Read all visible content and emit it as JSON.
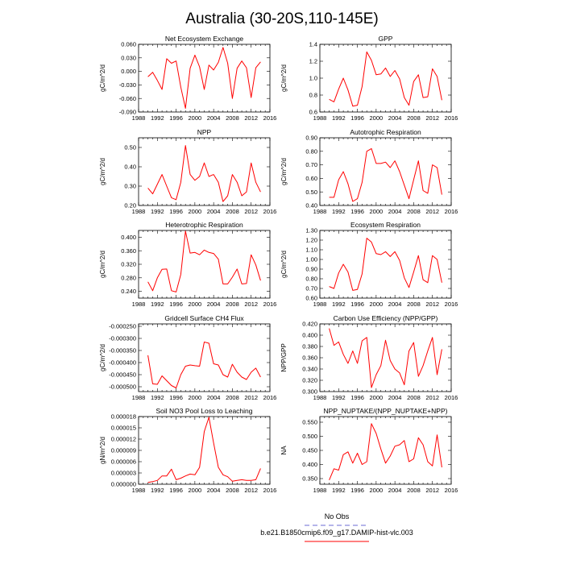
{
  "main_title": "Australia (30-20S,110-145E)",
  "legend": {
    "entries": [
      {
        "label": "No Obs",
        "color": "#6b6bd6",
        "dashed": true
      },
      {
        "label": "b.e21.B1850cmip6.f09_g17.DAMIP-hist-vlc.003",
        "color": "#ff0000",
        "dashed": false
      }
    ]
  },
  "chart_data": [
    {
      "type": "line",
      "title": "Net Ecosystem Exchange",
      "ylabel": "gC/m^2/d",
      "xlim": [
        1988,
        2016
      ],
      "xticks": [
        "1988",
        "1992",
        "1996",
        "2000",
        "2004",
        "2008",
        "2012",
        "2016"
      ],
      "ylim": [
        -0.09,
        0.06
      ],
      "yticks": [
        "-0.090",
        "-0.060",
        "-0.030",
        "0.000",
        "0.030",
        "0.060"
      ],
      "series": [
        {
          "color": "#ff0000",
          "x": [
            1990,
            1991,
            1992,
            1993,
            1994,
            1995,
            1996,
            1997,
            1998,
            1999,
            2000,
            2001,
            2002,
            2003,
            2004,
            2005,
            2006,
            2007,
            2008,
            2009,
            2010,
            2011,
            2012,
            2013,
            2014
          ],
          "y": [
            -0.012,
            -0.002,
            -0.02,
            -0.04,
            0.028,
            0.018,
            0.023,
            -0.035,
            -0.082,
            0.007,
            0.036,
            0.01,
            -0.04,
            0.014,
            0.003,
            0.02,
            0.053,
            0.018,
            -0.06,
            0.007,
            0.023,
            0.008,
            -0.058,
            0.008,
            0.021
          ]
        }
      ]
    },
    {
      "type": "line",
      "title": "GPP",
      "ylabel": "gC/m^2/d",
      "xlim": [
        1988,
        2016
      ],
      "xticks": [
        "1988",
        "1992",
        "1996",
        "2000",
        "2004",
        "2008",
        "2012",
        "2016"
      ],
      "ylim": [
        0.6,
        1.4
      ],
      "yticks": [
        "0.6",
        "0.8",
        "1.0",
        "1.2",
        "1.4"
      ],
      "series": [
        {
          "color": "#ff0000",
          "x": [
            1990,
            1991,
            1992,
            1993,
            1994,
            1995,
            1996,
            1997,
            1998,
            1999,
            2000,
            2001,
            2002,
            2003,
            2004,
            2005,
            2006,
            2007,
            2008,
            2009,
            2010,
            2011,
            2012,
            2013,
            2014
          ],
          "y": [
            0.75,
            0.72,
            0.87,
            1.0,
            0.86,
            0.67,
            0.68,
            0.9,
            1.31,
            1.21,
            1.04,
            1.05,
            1.12,
            1.02,
            1.09,
            0.99,
            0.77,
            0.68,
            0.96,
            1.04,
            0.77,
            0.78,
            1.11,
            1.02,
            0.74
          ]
        }
      ]
    },
    {
      "type": "line",
      "title": "NPP",
      "ylabel": "gC/m^2/d",
      "xlim": [
        1988,
        2016
      ],
      "xticks": [
        "1988",
        "1992",
        "1996",
        "2000",
        "2004",
        "2008",
        "2012",
        "2016"
      ],
      "ylim": [
        0.2,
        0.55
      ],
      "yticks": [
        "0.20",
        "0.30",
        "0.40",
        "0.50"
      ],
      "series": [
        {
          "color": "#ff0000",
          "x": [
            1990,
            1991,
            1992,
            1993,
            1994,
            1995,
            1996,
            1997,
            1998,
            1999,
            2000,
            2001,
            2002,
            2003,
            2004,
            2005,
            2006,
            2007,
            2008,
            2009,
            2010,
            2011,
            2012,
            2013,
            2014
          ],
          "y": [
            0.29,
            0.26,
            0.31,
            0.36,
            0.3,
            0.24,
            0.23,
            0.32,
            0.51,
            0.36,
            0.33,
            0.35,
            0.42,
            0.35,
            0.36,
            0.32,
            0.22,
            0.25,
            0.36,
            0.32,
            0.25,
            0.27,
            0.42,
            0.32,
            0.27
          ]
        }
      ]
    },
    {
      "type": "line",
      "title": "Autotrophic Respiration",
      "ylabel": "gC/m^2/d",
      "xlim": [
        1988,
        2016
      ],
      "xticks": [
        "1988",
        "1992",
        "1996",
        "2000",
        "2004",
        "2008",
        "2012",
        "2016"
      ],
      "ylim": [
        0.4,
        0.9
      ],
      "yticks": [
        "0.40",
        "0.50",
        "0.60",
        "0.70",
        "0.80",
        "0.90"
      ],
      "series": [
        {
          "color": "#ff0000",
          "x": [
            1990,
            1991,
            1992,
            1993,
            1994,
            1995,
            1996,
            1997,
            1998,
            1999,
            2000,
            2001,
            2002,
            2003,
            2004,
            2005,
            2006,
            2007,
            2008,
            2009,
            2010,
            2011,
            2012,
            2013,
            2014
          ],
          "y": [
            0.46,
            0.46,
            0.59,
            0.65,
            0.56,
            0.43,
            0.45,
            0.57,
            0.8,
            0.82,
            0.71,
            0.71,
            0.72,
            0.68,
            0.73,
            0.65,
            0.55,
            0.45,
            0.59,
            0.73,
            0.51,
            0.49,
            0.7,
            0.68,
            0.48
          ]
        }
      ]
    },
    {
      "type": "line",
      "title": "Heterotrophic Respiration",
      "ylabel": "gC/m^2/d",
      "xlim": [
        1988,
        2016
      ],
      "xticks": [
        "1988",
        "1992",
        "1996",
        "2000",
        "2004",
        "2008",
        "2012",
        "2016"
      ],
      "ylim": [
        0.22,
        0.42
      ],
      "yticks": [
        "0.240",
        "0.280",
        "0.320",
        "0.360",
        "0.400"
      ],
      "series": [
        {
          "color": "#ff0000",
          "x": [
            1990,
            1991,
            1992,
            1993,
            1994,
            1995,
            1996,
            1997,
            1998,
            1999,
            2000,
            2001,
            2002,
            2003,
            2004,
            2005,
            2006,
            2007,
            2008,
            2009,
            2010,
            2011,
            2012,
            2013,
            2014
          ],
          "y": [
            0.268,
            0.242,
            0.28,
            0.305,
            0.306,
            0.242,
            0.238,
            0.29,
            0.418,
            0.353,
            0.355,
            0.348,
            0.362,
            0.355,
            0.352,
            0.335,
            0.262,
            0.262,
            0.282,
            0.306,
            0.262,
            0.263,
            0.348,
            0.318,
            0.272
          ]
        }
      ]
    },
    {
      "type": "line",
      "title": "Ecosystem Respiration",
      "ylabel": "gC/m^2/d",
      "xlim": [
        1988,
        2016
      ],
      "xticks": [
        "1988",
        "1992",
        "1996",
        "2000",
        "2004",
        "2008",
        "2012",
        "2016"
      ],
      "ylim": [
        0.6,
        1.3
      ],
      "yticks": [
        "0.60",
        "0.70",
        "0.80",
        "0.90",
        "1.00",
        "1.10",
        "1.20",
        "1.30"
      ],
      "series": [
        {
          "color": "#ff0000",
          "x": [
            1990,
            1991,
            1992,
            1993,
            1994,
            1995,
            1996,
            1997,
            1998,
            1999,
            2000,
            2001,
            2002,
            2003,
            2004,
            2005,
            2006,
            2007,
            2008,
            2009,
            2010,
            2011,
            2012,
            2013,
            2014
          ],
          "y": [
            0.72,
            0.7,
            0.86,
            0.95,
            0.87,
            0.68,
            0.69,
            0.85,
            1.22,
            1.18,
            1.06,
            1.05,
            1.08,
            1.03,
            1.08,
            0.99,
            0.81,
            0.71,
            0.87,
            1.04,
            0.79,
            0.76,
            1.04,
            1.0,
            0.76
          ]
        }
      ]
    },
    {
      "type": "line",
      "title": "Gridcell Surface CH4 Flux",
      "ylabel": "gC/m^2/d",
      "xlim": [
        1988,
        2016
      ],
      "xticks": [
        "1988",
        "1992",
        "1996",
        "2000",
        "2004",
        "2008",
        "2012",
        "2016"
      ],
      "ylim": [
        -0.00052,
        -0.00024
      ],
      "yticks": [
        "-0.000500",
        "-0.000450",
        "-0.000400",
        "-0.000350",
        "-0.000300",
        "-0.000250"
      ],
      "series": [
        {
          "color": "#ff0000",
          "x": [
            1990,
            1991,
            1992,
            1993,
            1994,
            1995,
            1996,
            1997,
            1998,
            1999,
            2000,
            2001,
            2002,
            2003,
            2004,
            2005,
            2006,
            2007,
            2008,
            2009,
            2010,
            2011,
            2012,
            2013,
            2014
          ],
          "y": [
            -0.00037,
            -0.000488,
            -0.00049,
            -0.000455,
            -0.000475,
            -0.000495,
            -0.000505,
            -0.00045,
            -0.000415,
            -0.00041,
            -0.000413,
            -0.000415,
            -0.000315,
            -0.00032,
            -0.000405,
            -0.00041,
            -0.00045,
            -0.00046,
            -0.000407,
            -0.00044,
            -0.00046,
            -0.00047,
            -0.00044,
            -0.000423,
            -0.00046
          ]
        }
      ]
    },
    {
      "type": "line",
      "title": "Carbon Use Efficiency (NPP/GPP)",
      "ylabel": "NPP/GPP",
      "xlim": [
        1988,
        2016
      ],
      "xticks": [
        "1988",
        "1992",
        "1996",
        "2000",
        "2004",
        "2008",
        "2012",
        "2016"
      ],
      "ylim": [
        0.3,
        0.42
      ],
      "yticks": [
        "0.300",
        "0.320",
        "0.340",
        "0.360",
        "0.380",
        "0.400",
        "0.420"
      ],
      "series": [
        {
          "color": "#ff0000",
          "x": [
            1990,
            1991,
            1992,
            1993,
            1994,
            1995,
            1996,
            1997,
            1998,
            1999,
            2000,
            2001,
            2002,
            2003,
            2004,
            2005,
            2006,
            2007,
            2008,
            2009,
            2010,
            2011,
            2012,
            2013,
            2014
          ],
          "y": [
            0.412,
            0.382,
            0.388,
            0.366,
            0.35,
            0.372,
            0.35,
            0.39,
            0.396,
            0.307,
            0.33,
            0.346,
            0.391,
            0.355,
            0.34,
            0.333,
            0.312,
            0.372,
            0.387,
            0.327,
            0.346,
            0.372,
            0.396,
            0.33,
            0.375
          ]
        }
      ]
    },
    {
      "type": "line",
      "title": "Soil NO3 Pool Loss to Leaching",
      "ylabel": "gN/m^2/d",
      "xlim": [
        1988,
        2016
      ],
      "xticks": [
        "1988",
        "1992",
        "1996",
        "2000",
        "2004",
        "2008",
        "2012",
        "2016"
      ],
      "ylim": [
        0,
        1.8e-05
      ],
      "yticks": [
        "0.000000",
        "0.000003",
        "0.000006",
        "0.000009",
        "0.000012",
        "0.000015",
        "0.000018"
      ],
      "series": [
        {
          "color": "#ff0000",
          "x": [
            1990,
            1991,
            1992,
            1993,
            1994,
            1995,
            1996,
            1997,
            1998,
            1999,
            2000,
            2001,
            2002,
            2003,
            2004,
            2005,
            2006,
            2007,
            2008,
            2009,
            2010,
            2011,
            2012,
            2013,
            2014
          ],
          "y": [
            5e-07,
            7e-07,
            1e-06,
            2.2e-06,
            2.2e-06,
            4e-06,
            1.2e-06,
            1.6e-06,
            2.2e-06,
            2.7e-06,
            2.5e-06,
            4.5e-06,
            1.4e-05,
            1.78e-05,
            1.1e-05,
            4.5e-06,
            2.5e-06,
            2e-06,
            8e-07,
            1e-06,
            1.2e-06,
            1e-06,
            1e-06,
            1.2e-06,
            4.2e-06
          ]
        }
      ]
    },
    {
      "type": "line",
      "title": "NPP_NUPTAKE/(NPP_NUPTAKE+NPP)",
      "ylabel": "NA",
      "xlim": [
        1988,
        2016
      ],
      "xticks": [
        "1988",
        "1992",
        "1996",
        "2000",
        "2004",
        "2008",
        "2012",
        "2016"
      ],
      "ylim": [
        0.33,
        0.57
      ],
      "yticks": [
        "0.350",
        "0.400",
        "0.450",
        "0.500",
        "0.550"
      ],
      "series": [
        {
          "color": "#ff0000",
          "x": [
            1990,
            1991,
            1992,
            1993,
            1994,
            1995,
            1996,
            1997,
            1998,
            1999,
            2000,
            2001,
            2002,
            2003,
            2004,
            2005,
            2006,
            2007,
            2008,
            2009,
            2010,
            2011,
            2012,
            2013,
            2014
          ],
          "y": [
            0.345,
            0.385,
            0.38,
            0.435,
            0.445,
            0.405,
            0.44,
            0.4,
            0.41,
            0.545,
            0.51,
            0.455,
            0.405,
            0.43,
            0.465,
            0.47,
            0.485,
            0.41,
            0.42,
            0.495,
            0.47,
            0.41,
            0.395,
            0.505,
            0.39
          ]
        }
      ]
    }
  ]
}
